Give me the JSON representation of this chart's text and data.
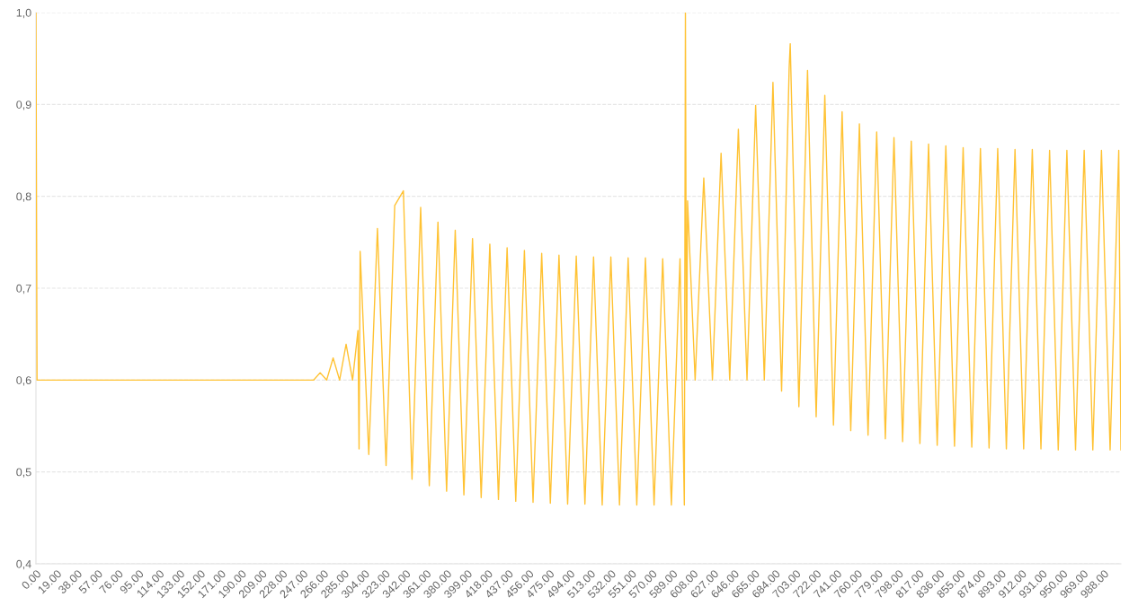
{
  "chart_data": {
    "type": "line",
    "x": [
      0,
      1,
      257,
      263,
      269,
      275,
      281,
      287,
      293,
      298,
      299,
      300,
      308,
      316,
      324,
      332,
      340,
      348,
      356,
      364,
      372,
      380,
      388,
      396,
      404,
      412,
      420,
      428,
      436,
      444,
      452,
      460,
      468,
      476,
      484,
      492,
      500,
      508,
      516,
      524,
      532,
      540,
      548,
      556,
      564,
      572,
      580,
      588,
      596,
      600,
      601,
      602,
      603,
      610,
      618,
      626,
      634,
      642,
      650,
      658,
      666,
      674,
      682,
      690,
      697,
      698,
      706,
      714,
      722,
      730,
      738,
      746,
      754,
      762,
      770,
      778,
      786,
      794,
      802,
      810,
      818,
      826,
      834,
      842,
      850,
      858,
      866,
      874,
      882,
      890,
      898,
      906,
      914,
      922,
      930,
      938,
      946,
      954,
      962,
      970,
      978,
      986,
      994,
      1002,
      1004
    ],
    "series": [
      {
        "color": "#ffc233",
        "values": [
          1.0,
          0.6,
          0.6,
          0.608,
          0.6,
          0.624,
          0.6,
          0.639,
          0.6,
          0.654,
          0.525,
          0.74,
          0.519,
          0.765,
          0.507,
          0.79,
          0.806,
          0.492,
          0.788,
          0.485,
          0.772,
          0.479,
          0.763,
          0.475,
          0.754,
          0.472,
          0.748,
          0.47,
          0.744,
          0.468,
          0.741,
          0.467,
          0.738,
          0.466,
          0.736,
          0.465,
          0.735,
          0.465,
          0.734,
          0.464,
          0.734,
          0.464,
          0.733,
          0.464,
          0.733,
          0.464,
          0.732,
          0.464,
          0.732,
          0.464,
          1.0,
          0.6,
          0.795,
          0.6,
          0.82,
          0.6,
          0.847,
          0.6,
          0.873,
          0.6,
          0.899,
          0.6,
          0.924,
          0.588,
          0.94,
          0.966,
          0.571,
          0.937,
          0.56,
          0.91,
          0.551,
          0.892,
          0.545,
          0.879,
          0.54,
          0.87,
          0.536,
          0.864,
          0.533,
          0.86,
          0.531,
          0.857,
          0.529,
          0.855,
          0.528,
          0.853,
          0.527,
          0.852,
          0.526,
          0.852,
          0.525,
          0.851,
          0.525,
          0.851,
          0.525,
          0.85,
          0.524,
          0.85,
          0.524,
          0.85,
          0.524,
          0.85,
          0.524,
          0.85,
          0.524
        ]
      }
    ],
    "xlim": [
      0,
      1004
    ],
    "xticks": [
      {
        "value": 0,
        "label": "0.00"
      },
      {
        "value": 19,
        "label": "19.00"
      },
      {
        "value": 38,
        "label": "38.00"
      },
      {
        "value": 57,
        "label": "57.00"
      },
      {
        "value": 76,
        "label": "76.00"
      },
      {
        "value": 95,
        "label": "95.00"
      },
      {
        "value": 114,
        "label": "114.00"
      },
      {
        "value": 133,
        "label": "133.00"
      },
      {
        "value": 152,
        "label": "152.00"
      },
      {
        "value": 171,
        "label": "171.00"
      },
      {
        "value": 190,
        "label": "190.00"
      },
      {
        "value": 209,
        "label": "209.00"
      },
      {
        "value": 228,
        "label": "228.00"
      },
      {
        "value": 247,
        "label": "247.00"
      },
      {
        "value": 266,
        "label": "266.00"
      },
      {
        "value": 285,
        "label": "285.00"
      },
      {
        "value": 304,
        "label": "304.00"
      },
      {
        "value": 323,
        "label": "323.00"
      },
      {
        "value": 342,
        "label": "342.00"
      },
      {
        "value": 361,
        "label": "361.00"
      },
      {
        "value": 380,
        "label": "380.00"
      },
      {
        "value": 399,
        "label": "399.00"
      },
      {
        "value": 418,
        "label": "418.00"
      },
      {
        "value": 437,
        "label": "437.00"
      },
      {
        "value": 456,
        "label": "456.00"
      },
      {
        "value": 475,
        "label": "475.00"
      },
      {
        "value": 494,
        "label": "494.00"
      },
      {
        "value": 513,
        "label": "513.00"
      },
      {
        "value": 532,
        "label": "532.00"
      },
      {
        "value": 551,
        "label": "551.00"
      },
      {
        "value": 570,
        "label": "570.00"
      },
      {
        "value": 589,
        "label": "589.00"
      },
      {
        "value": 608,
        "label": "608.00"
      },
      {
        "value": 627,
        "label": "627.00"
      },
      {
        "value": 646,
        "label": "646.00"
      },
      {
        "value": 665,
        "label": "665.00"
      },
      {
        "value": 684,
        "label": "684.00"
      },
      {
        "value": 703,
        "label": "703.00"
      },
      {
        "value": 722,
        "label": "722.00"
      },
      {
        "value": 741,
        "label": "741.00"
      },
      {
        "value": 760,
        "label": "760.00"
      },
      {
        "value": 779,
        "label": "779.00"
      },
      {
        "value": 798,
        "label": "798.00"
      },
      {
        "value": 817,
        "label": "817.00"
      },
      {
        "value": 836,
        "label": "836.00"
      },
      {
        "value": 855,
        "label": "855.00"
      },
      {
        "value": 874,
        "label": "874.00"
      },
      {
        "value": 893,
        "label": "893.00"
      },
      {
        "value": 912,
        "label": "912.00"
      },
      {
        "value": 931,
        "label": "931.00"
      },
      {
        "value": 950,
        "label": "950.00"
      },
      {
        "value": 969,
        "label": "969.00"
      },
      {
        "value": 988,
        "label": "988.00"
      }
    ],
    "ylim": [
      0.4,
      1.0
    ],
    "yticks": [
      {
        "value": 0.4,
        "label": "0,4"
      },
      {
        "value": 0.5,
        "label": "0,5"
      },
      {
        "value": 0.6,
        "label": "0,6"
      },
      {
        "value": 0.7,
        "label": "0,7"
      },
      {
        "value": 0.8,
        "label": "0,8"
      },
      {
        "value": 0.9,
        "label": "0,9"
      },
      {
        "value": 1.0,
        "label": "1,0"
      }
    ],
    "grid": "y",
    "marker": "none",
    "line_style": "solid"
  }
}
